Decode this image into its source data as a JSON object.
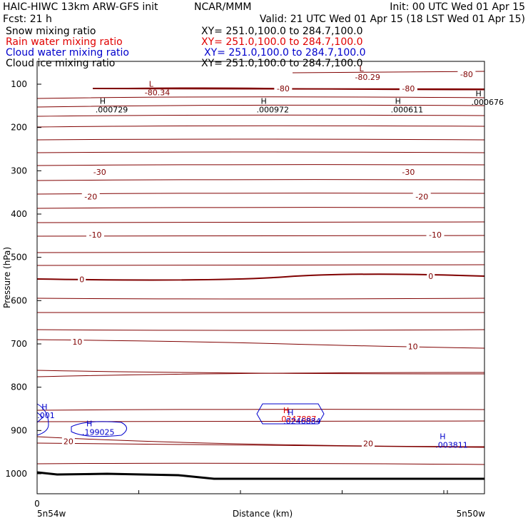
{
  "header": {
    "title": "HAIC-HIWC 13km ARW-GFS init",
    "org": "NCAR/MMM",
    "init": "Init: 00 UTC Wed 01 Apr 15",
    "fcst": "Fcst:    21 h",
    "valid": "Valid: 21 UTC Wed 01 Apr 15 (18 LST Wed 01 Apr 15)"
  },
  "fields": [
    {
      "name": "Snow mixing ratio",
      "xy": "XY= 251.0,100.0 to 284.7,100.0",
      "color": "#000000"
    },
    {
      "name": "Rain water mixing ratio",
      "xy": "XY= 251.0,100.0 to 284.7,100.0",
      "color": "#e00000"
    },
    {
      "name": "Cloud water mixing ratio",
      "xy": "XY= 251.0,100.0 to 284.7,100.0",
      "color": "#0000cc"
    },
    {
      "name": "Cloud ice mixing ratio",
      "xy": "XY= 251.0,100.0 to 284.7,100.0",
      "color": "#000000"
    }
  ],
  "chart_data": {
    "type": "line",
    "xlabel": "Distance (km)",
    "ylabel": "Pressure (hPa)",
    "x_tick_label": "0",
    "left_location": "5n54w",
    "right_location": "5n50w",
    "y_ticks": [
      100,
      200,
      300,
      400,
      500,
      600,
      700,
      800,
      900,
      1000
    ],
    "contour_color": "#800000",
    "contour_labels": [
      {
        "text": "-80",
        "x": 0.96,
        "p": 77
      },
      {
        "text": "-80",
        "x": 0.55,
        "p": 110
      },
      {
        "text": "-80",
        "x": 0.83,
        "p": 110
      },
      {
        "text": "-30",
        "x": 0.14,
        "p": 303
      },
      {
        "text": "-30",
        "x": 0.83,
        "p": 303
      },
      {
        "text": "-20",
        "x": 0.12,
        "p": 360
      },
      {
        "text": "-20",
        "x": 0.86,
        "p": 360
      },
      {
        "text": "-10",
        "x": 0.13,
        "p": 448
      },
      {
        "text": "-10",
        "x": 0.89,
        "p": 448
      },
      {
        "text": "0",
        "x": 0.1,
        "p": 551
      },
      {
        "text": "0",
        "x": 0.88,
        "p": 543
      },
      {
        "text": "10",
        "x": 0.09,
        "p": 695
      },
      {
        "text": "10",
        "x": 0.84,
        "p": 706
      },
      {
        "text": "20",
        "x": 0.07,
        "p": 925
      },
      {
        "text": "20",
        "x": 0.74,
        "p": 930
      }
    ],
    "extrema": [
      {
        "kind": "L",
        "value": "-80.34",
        "x": 0.25,
        "p": 106,
        "color": "#800000"
      },
      {
        "kind": "L",
        "value": "-80.29",
        "x": 0.72,
        "p": 70,
        "color": "#800000"
      },
      {
        "kind": "H",
        "value": ".000729",
        "x": 0.14,
        "p": 145,
        "color": "#000000"
      },
      {
        "kind": "H",
        "value": ".000972",
        "x": 0.5,
        "p": 145,
        "color": "#000000"
      },
      {
        "kind": "H",
        "value": ".000611",
        "x": 0.8,
        "p": 145,
        "color": "#000000"
      },
      {
        "kind": "H",
        "value": ".000676",
        "x": 0.98,
        "p": 128,
        "color": "#000000"
      },
      {
        "kind": "H",
        "value": ".199025",
        "x": 0.11,
        "p": 890,
        "color": "#0000cc"
      },
      {
        "kind": "H",
        "value": ".001",
        "x": 0.01,
        "p": 852,
        "color": "#0000cc"
      },
      {
        "kind": "H",
        "value": ".0247887",
        "x": 0.55,
        "p": 860,
        "color": "#e00000"
      },
      {
        "kind": "H",
        "value": ".0246884",
        "x": 0.56,
        "p": 865,
        "color": "#0000cc"
      },
      {
        "kind": "H",
        "value": ".003811",
        "x": 0.9,
        "p": 920,
        "color": "#0000cc"
      }
    ]
  }
}
